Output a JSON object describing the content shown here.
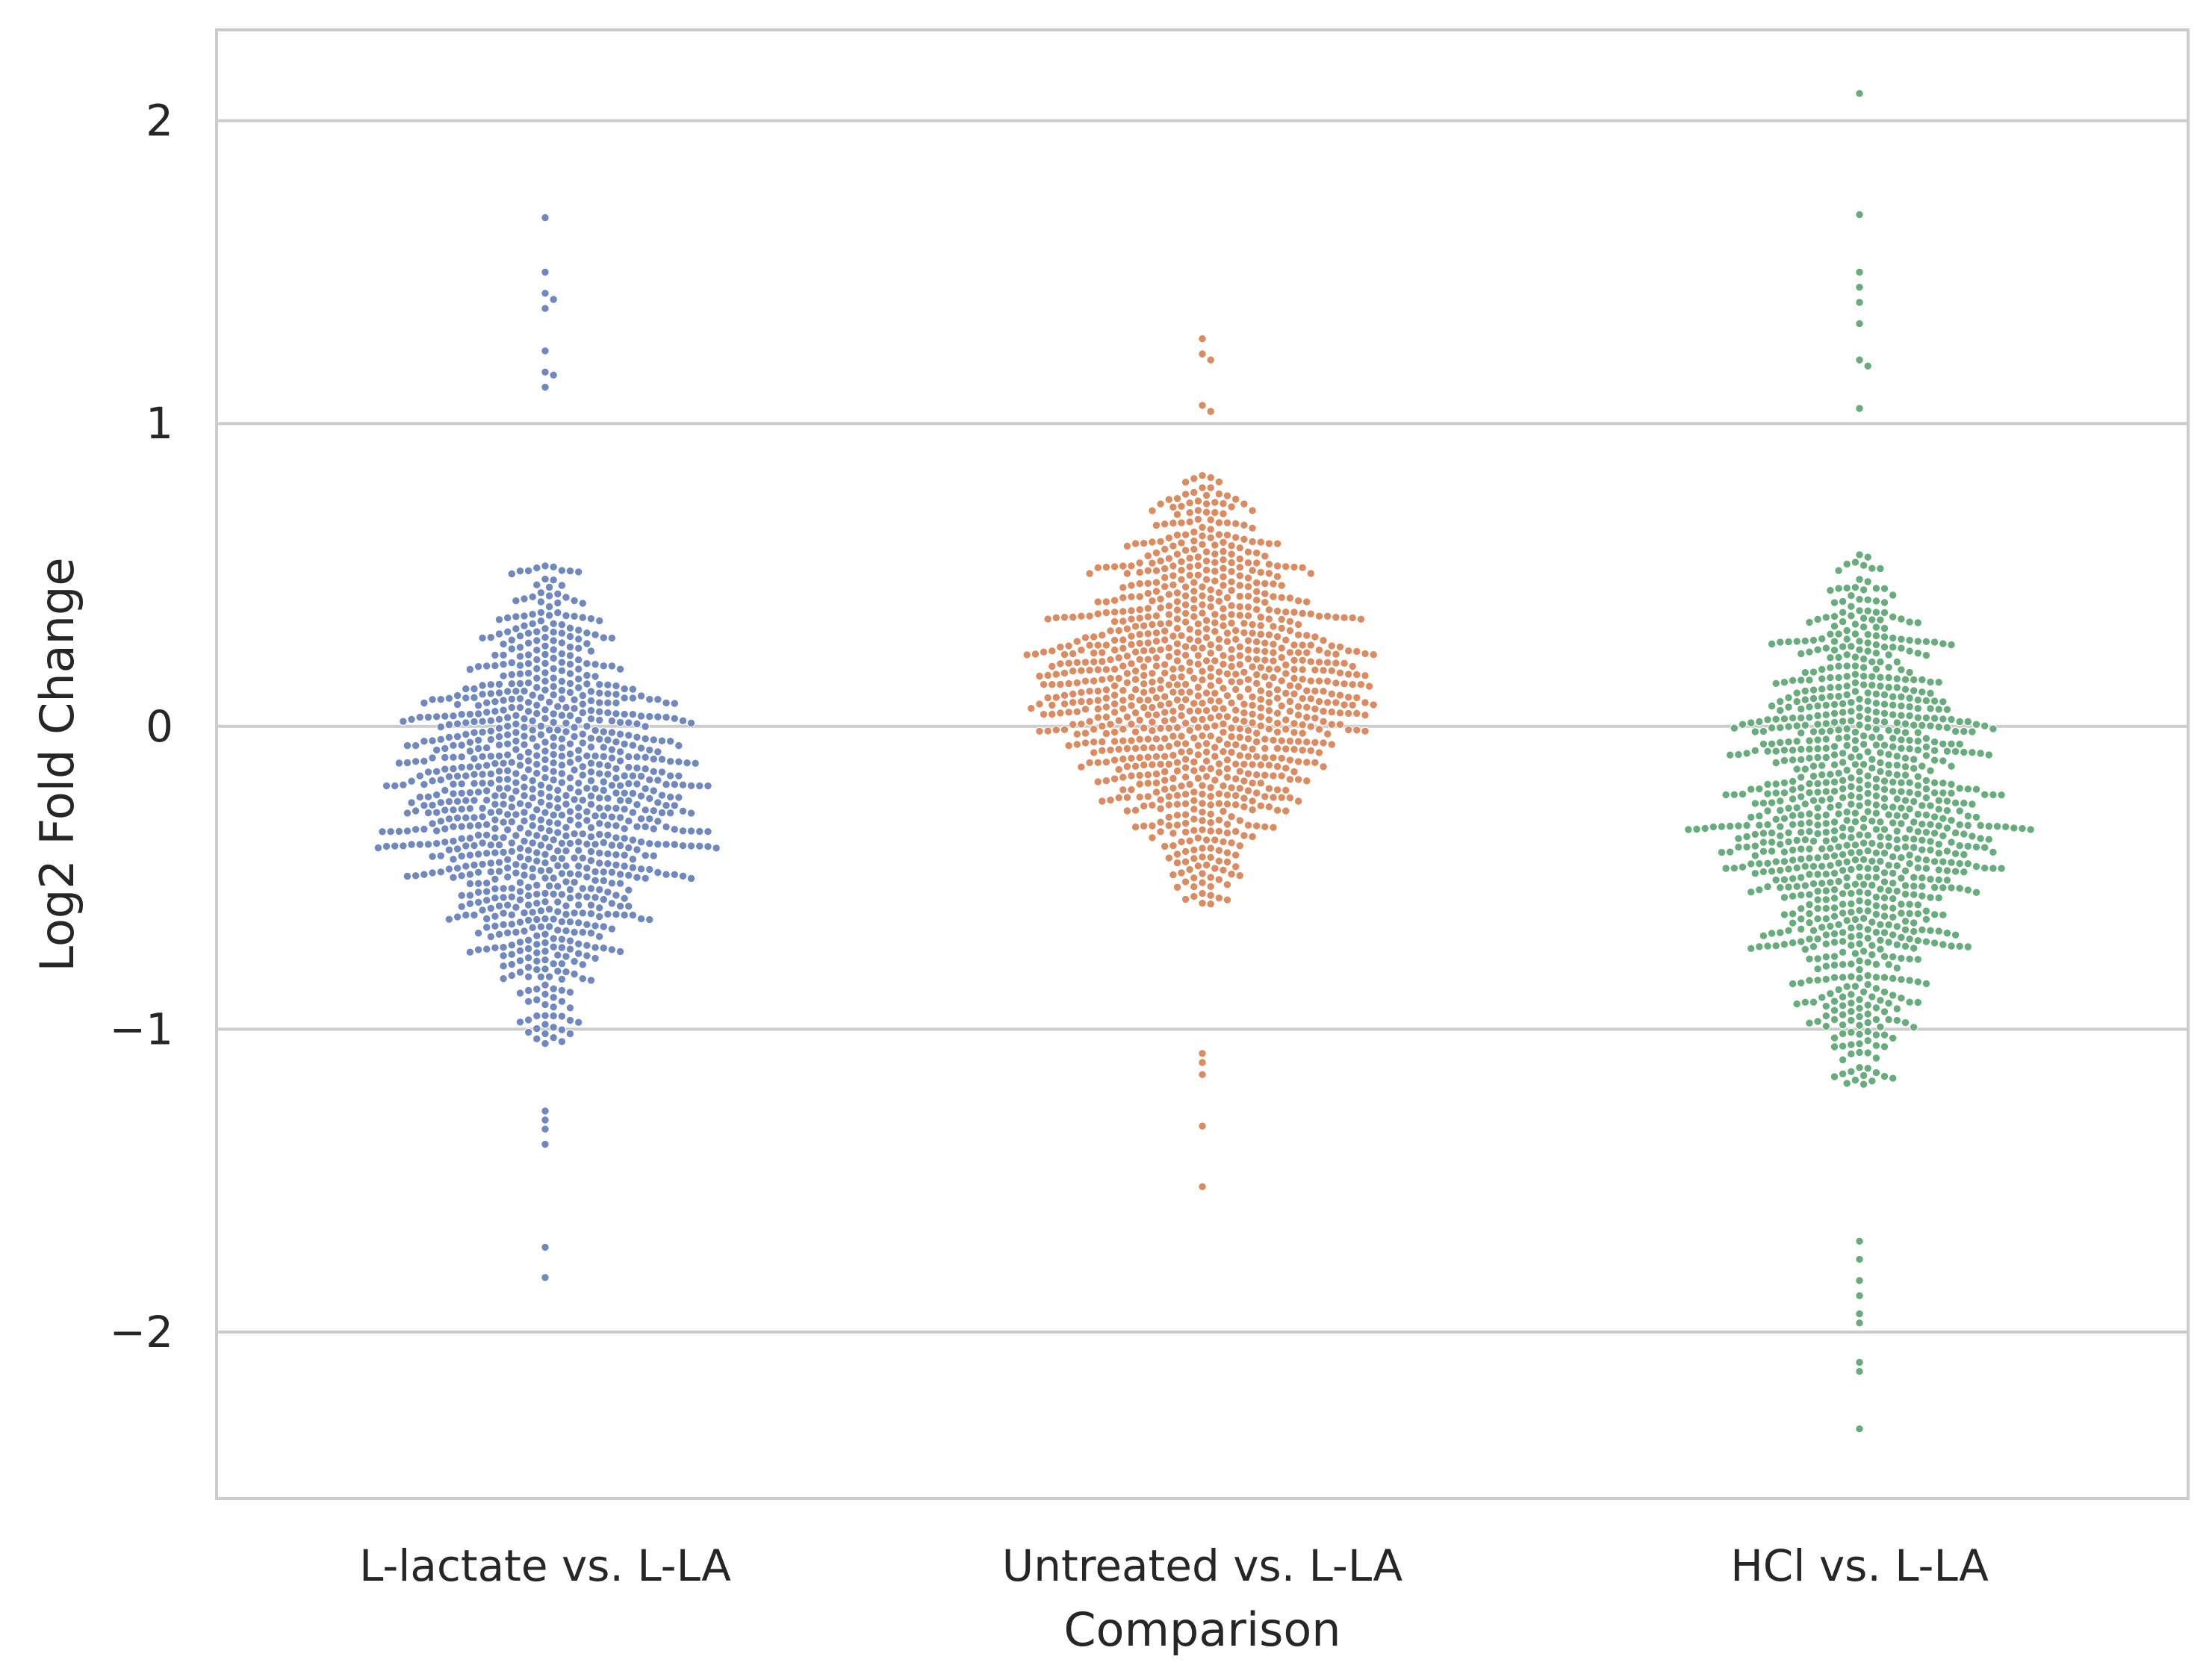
{
  "chart_data": {
    "type": "scatter",
    "subtype": "swarm",
    "title": "",
    "xlabel": "Comparison",
    "ylabel": "Log2 Fold Change",
    "ylim": [
      -2.55,
      2.3
    ],
    "yticks": [
      -2,
      -1,
      0,
      1,
      2
    ],
    "ytick_labels": [
      "−2",
      "−1",
      "0",
      "1",
      "2"
    ],
    "grid": "horizontal",
    "legend": "none",
    "categories": [
      "L-lactate vs. L-LA",
      "Untreated vs. L-LA",
      "HCl vs. L-LA"
    ],
    "series": [
      {
        "color": "#6f88bf",
        "approx_points": 1000,
        "median": -0.25,
        "spread_sd": 0.38,
        "max": 1.68,
        "min": -1.82,
        "outliers": [
          1.68,
          1.5,
          1.43,
          1.41,
          1.38,
          1.24,
          1.17,
          1.16,
          1.12,
          -1.27,
          -1.3,
          -1.33,
          -1.38,
          -1.72,
          -1.82
        ]
      },
      {
        "color": "#dc8a5f",
        "approx_points": 1000,
        "median": 0.12,
        "spread_sd": 0.34,
        "max": 1.28,
        "min": -1.52,
        "outliers": [
          1.28,
          1.23,
          1.21,
          1.06,
          1.04,
          -1.08,
          -1.11,
          -1.15,
          -1.32,
          -1.52
        ]
      },
      {
        "color": "#67ad7c",
        "approx_points": 1000,
        "median": -0.3,
        "spread_sd": 0.42,
        "max": 2.09,
        "min": -2.32,
        "outliers": [
          2.09,
          1.69,
          1.5,
          1.45,
          1.4,
          1.33,
          1.21,
          1.19,
          1.05,
          -1.7,
          -1.76,
          -1.83,
          -1.88,
          -1.94,
          -1.97,
          -2.1,
          -2.13,
          -2.32
        ]
      }
    ]
  }
}
